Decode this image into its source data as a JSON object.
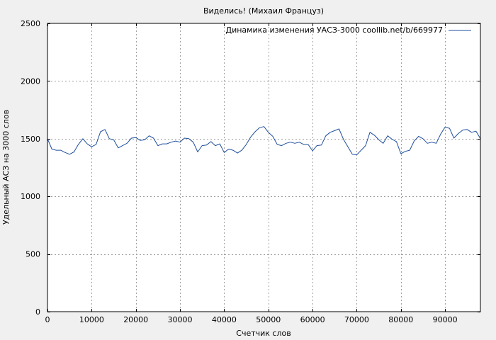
{
  "chart_data": {
    "type": "line",
    "title": "Виделись! (Михаил Француз)",
    "xlabel": "Счетчик слов",
    "ylabel": "Удельный АСЗ на 3000 слов",
    "xlim": [
      0,
      98000
    ],
    "ylim": [
      0,
      2500
    ],
    "xticks": [
      0,
      10000,
      20000,
      30000,
      40000,
      50000,
      60000,
      70000,
      80000,
      90000
    ],
    "yticks": [
      0,
      500,
      1000,
      1500,
      2000,
      2500
    ],
    "grid": true,
    "legend_position": "top-right",
    "series": [
      {
        "name": "Динамика изменения УАСЗ-3000 coollib.net/b/669977",
        "color": "#1f4e9c",
        "x": [
          0,
          1000,
          2000,
          3000,
          4000,
          5000,
          6000,
          7000,
          8000,
          9000,
          10000,
          11000,
          12000,
          13000,
          14000,
          15000,
          16000,
          17000,
          18000,
          19000,
          20000,
          21000,
          22000,
          23000,
          24000,
          25000,
          26000,
          27000,
          28000,
          29000,
          30000,
          31000,
          32000,
          33000,
          34000,
          35000,
          36000,
          37000,
          38000,
          39000,
          40000,
          41000,
          42000,
          43000,
          44000,
          45000,
          46000,
          47000,
          48000,
          49000,
          50000,
          51000,
          52000,
          53000,
          54000,
          55000,
          56000,
          57000,
          58000,
          59000,
          60000,
          61000,
          62000,
          63000,
          64000,
          65000,
          66000,
          67000,
          68000,
          69000,
          70000,
          71000,
          72000,
          73000,
          74000,
          75000,
          76000,
          77000,
          78000,
          79000,
          80000,
          81000,
          82000,
          83000,
          84000,
          85000,
          86000,
          87000,
          88000,
          89000,
          90000,
          91000,
          92000,
          93000,
          94000,
          95000,
          96000,
          97000,
          98000
        ],
        "y": [
          1500,
          1410,
          1400,
          1400,
          1380,
          1365,
          1385,
          1450,
          1500,
          1455,
          1430,
          1450,
          1560,
          1580,
          1500,
          1490,
          1420,
          1440,
          1460,
          1505,
          1510,
          1485,
          1490,
          1525,
          1505,
          1440,
          1455,
          1455,
          1470,
          1480,
          1470,
          1505,
          1500,
          1470,
          1385,
          1440,
          1445,
          1475,
          1440,
          1455,
          1380,
          1410,
          1400,
          1375,
          1400,
          1450,
          1515,
          1560,
          1595,
          1605,
          1555,
          1520,
          1450,
          1440,
          1460,
          1470,
          1460,
          1470,
          1450,
          1450,
          1395,
          1440,
          1445,
          1525,
          1555,
          1570,
          1585,
          1495,
          1430,
          1365,
          1360,
          1400,
          1440,
          1555,
          1530,
          1490,
          1460,
          1525,
          1495,
          1475,
          1370,
          1390,
          1400,
          1480,
          1520,
          1500,
          1460,
          1470,
          1460,
          1540,
          1600,
          1590,
          1505,
          1545,
          1575,
          1580,
          1555,
          1565,
          1500
        ]
      }
    ]
  }
}
